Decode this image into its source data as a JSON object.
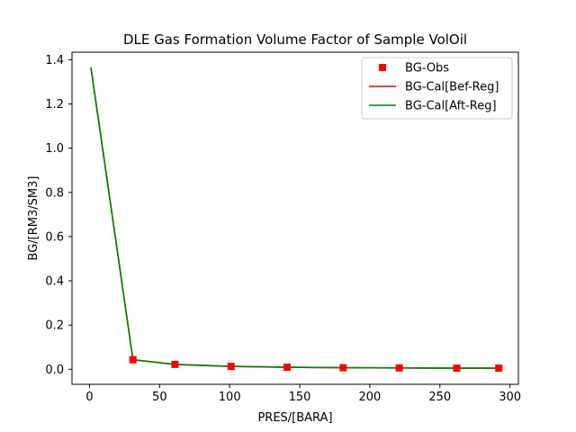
{
  "chart_data": {
    "type": "line",
    "title": "DLE Gas Formation Volume Factor of Sample VolOil",
    "xlabel": "PRES/[BARA]",
    "ylabel": "BG/[RM3/SM3]",
    "xlim": [
      -12.5,
      306
    ],
    "ylim": [
      -0.068,
      1.434
    ],
    "xticks": [
      0,
      50,
      100,
      150,
      200,
      250,
      300
    ],
    "yticks": [
      0.0,
      0.2,
      0.4,
      0.6,
      0.8,
      1.0,
      1.2,
      1.4
    ],
    "xtick_labels": [
      "0",
      "50",
      "100",
      "150",
      "200",
      "250",
      "300"
    ],
    "ytick_labels": [
      "0.0",
      "0.2",
      "0.4",
      "0.6",
      "0.8",
      "1.0",
      "1.2",
      "1.4"
    ],
    "grid": false,
    "legend_position": "top-right",
    "series": [
      {
        "name": "BG-Obs",
        "style": "markers",
        "marker": "square",
        "color": "#ff0000",
        "x": [
          31,
          61,
          101,
          141,
          181,
          221,
          262,
          292
        ],
        "y": [
          0.043,
          0.022,
          0.013,
          0.009,
          0.007,
          0.006,
          0.005,
          0.005
        ]
      },
      {
        "name": "BG-Cal[Bef-Reg]",
        "style": "line",
        "color": "#ff0000",
        "x": [
          1.01,
          31,
          61,
          101,
          141,
          181,
          221,
          262,
          292
        ],
        "y": [
          1.365,
          0.043,
          0.022,
          0.013,
          0.009,
          0.007,
          0.006,
          0.005,
          0.005
        ]
      },
      {
        "name": "BG-Cal[Aft-Reg]",
        "style": "line",
        "color": "#008000",
        "x": [
          1.01,
          31,
          61,
          101,
          141,
          181,
          221,
          262,
          292
        ],
        "y": [
          1.365,
          0.043,
          0.022,
          0.013,
          0.009,
          0.007,
          0.006,
          0.005,
          0.005
        ]
      }
    ]
  }
}
